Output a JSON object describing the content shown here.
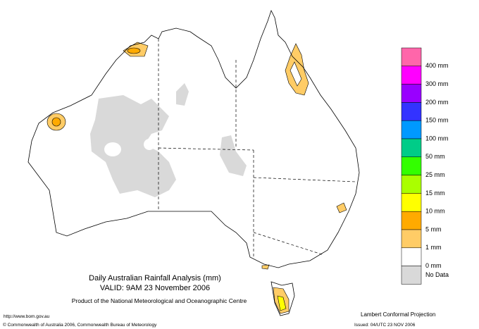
{
  "title": "Daily Australian Rainfall Analysis (mm)",
  "valid": "VALID: 9AM 23 November 2006",
  "product": "Product of the National Meteorological and Oceanographic Centre",
  "url": "http://www.bom.gov.au",
  "copyright": "© Commonwealth of Australia 2006, Commonwealth Bureau of Meteorology",
  "projection": "Lambert Conformal Projection",
  "issued": "Issued: 04/UTC 23 NOV 2006",
  "legend": {
    "labels": [
      "400 mm",
      "300 mm",
      "200 mm",
      "150 mm",
      "100 mm",
      "50 mm",
      "25 mm",
      "15 mm",
      "10 mm",
      "5 mm",
      "1 mm",
      "0 mm",
      "No Data"
    ]
  }
}
